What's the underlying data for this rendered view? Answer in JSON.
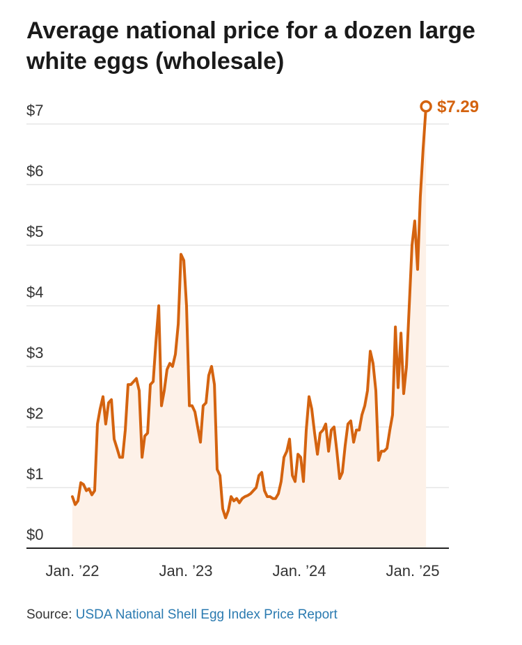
{
  "chart_data": {
    "type": "line",
    "title": "Average national price for a dozen large white eggs (wholesale)",
    "source": {
      "prefix": "Source:",
      "link": "USDA National Shell Egg Index Price Report"
    },
    "color": "#d4630f",
    "area_color": "#fdf1e8",
    "grid": true,
    "xlim": [
      2021.595,
      2025.319
    ],
    "ylim": [
      0,
      7
    ],
    "xticks": [
      {
        "value": 2022,
        "label": "Jan. ’22"
      },
      {
        "value": 2023,
        "label": "Jan. ’23"
      },
      {
        "value": 2024,
        "label": "Jan. ’24"
      },
      {
        "value": 2025,
        "label": "Jan. ’25"
      }
    ],
    "yticks": [
      {
        "value": 0,
        "label": "$0"
      },
      {
        "value": 1,
        "label": "$1"
      },
      {
        "value": 2,
        "label": "$2"
      },
      {
        "value": 3,
        "label": "$3"
      },
      {
        "value": 4,
        "label": "$4"
      },
      {
        "value": 5,
        "label": "$5"
      },
      {
        "value": 6,
        "label": "$6"
      },
      {
        "value": 7,
        "label": "$7"
      }
    ],
    "x": [
      2022.0,
      2022.025,
      2022.049,
      2022.074,
      2022.098,
      2022.123,
      2022.147,
      2022.172,
      2022.196,
      2022.221,
      2022.245,
      2022.27,
      2022.294,
      2022.319,
      2022.344,
      2022.368,
      2022.393,
      2022.417,
      2022.442,
      2022.466,
      2022.491,
      2022.515,
      2022.54,
      2022.564,
      2022.589,
      2022.614,
      2022.638,
      2022.663,
      2022.687,
      2022.712,
      2022.736,
      2022.761,
      2022.785,
      2022.81,
      2022.834,
      2022.859,
      2022.883,
      2022.908,
      2022.933,
      2022.957,
      2022.982,
      2023.006,
      2023.031,
      2023.055,
      2023.08,
      2023.104,
      2023.129,
      2023.153,
      2023.178,
      2023.202,
      2023.227,
      2023.252,
      2023.276,
      2023.301,
      2023.325,
      2023.35,
      2023.374,
      2023.399,
      2023.423,
      2023.448,
      2023.472,
      2023.497,
      2023.521,
      2023.546,
      2023.571,
      2023.595,
      2023.62,
      2023.644,
      2023.669,
      2023.693,
      2023.718,
      2023.742,
      2023.767,
      2023.791,
      2023.816,
      2023.84,
      2023.865,
      2023.89,
      2023.914,
      2023.939,
      2023.963,
      2023.988,
      2024.012,
      2024.037,
      2024.061,
      2024.086,
      2024.11,
      2024.135,
      2024.16,
      2024.184,
      2024.209,
      2024.233,
      2024.258,
      2024.282,
      2024.307,
      2024.331,
      2024.356,
      2024.38,
      2024.405,
      2024.429,
      2024.454,
      2024.479,
      2024.503,
      2024.528,
      2024.552,
      2024.577,
      2024.601,
      2024.626,
      2024.65,
      2024.675,
      2024.699,
      2024.724,
      2024.748,
      2024.773,
      2024.798,
      2024.822,
      2024.847,
      2024.871,
      2024.896,
      2024.92,
      2024.945,
      2024.969,
      2024.994,
      2025.018,
      2025.043,
      2025.067,
      2025.092,
      2025.117
    ],
    "values": [
      0.85,
      0.72,
      0.78,
      1.08,
      1.05,
      0.95,
      0.98,
      0.88,
      0.95,
      2.05,
      2.3,
      2.5,
      2.05,
      2.4,
      2.45,
      1.8,
      1.65,
      1.5,
      1.5,
      1.95,
      2.7,
      2.7,
      2.75,
      2.8,
      2.6,
      1.5,
      1.85,
      1.9,
      2.7,
      2.75,
      3.4,
      4.0,
      2.35,
      2.6,
      2.95,
      3.05,
      3.0,
      3.2,
      3.7,
      4.85,
      4.75,
      4.0,
      2.35,
      2.35,
      2.25,
      2.0,
      1.75,
      2.35,
      2.4,
      2.85,
      3.0,
      2.7,
      1.3,
      1.2,
      0.65,
      0.5,
      0.62,
      0.85,
      0.78,
      0.82,
      0.75,
      0.82,
      0.85,
      0.87,
      0.9,
      0.95,
      1.0,
      1.2,
      1.25,
      0.95,
      0.85,
      0.85,
      0.82,
      0.82,
      0.9,
      1.1,
      1.5,
      1.6,
      1.8,
      1.2,
      1.1,
      1.55,
      1.5,
      1.1,
      1.95,
      2.5,
      2.3,
      1.9,
      1.55,
      1.9,
      1.95,
      2.05,
      1.6,
      1.95,
      2.0,
      1.6,
      1.15,
      1.25,
      1.7,
      2.05,
      2.1,
      1.75,
      1.95,
      1.95,
      2.2,
      2.35,
      2.6,
      3.25,
      3.05,
      2.6,
      1.45,
      1.6,
      1.6,
      1.65,
      1.95,
      2.2,
      3.65,
      2.65,
      3.55,
      2.55,
      3.0,
      4.0,
      5.0,
      5.4,
      4.6,
      5.8,
      6.6,
      7.29
    ],
    "value_labels": [
      null,
      null,
      null,
      null,
      null,
      null,
      null,
      null,
      null,
      null,
      null,
      null,
      null,
      null,
      null,
      null,
      null,
      null,
      null,
      null,
      null,
      null,
      null,
      null,
      null,
      null,
      null,
      null,
      null,
      null,
      null,
      null,
      null,
      null,
      null,
      null,
      null,
      null,
      null,
      null,
      null,
      null,
      null,
      null,
      null,
      null,
      null,
      null,
      null,
      null,
      null,
      null,
      null,
      null,
      null,
      null,
      null,
      null,
      null,
      null,
      null,
      null,
      null,
      null,
      null,
      null,
      null,
      null,
      null,
      null,
      null,
      null,
      null,
      null,
      null,
      null,
      null,
      null,
      null,
      null,
      null,
      null,
      null,
      null,
      null,
      null,
      null,
      null,
      null,
      null,
      null,
      null,
      null,
      null,
      null,
      null,
      null,
      null,
      null,
      null,
      null,
      null,
      null,
      null,
      null,
      null,
      null,
      null,
      null,
      null,
      null,
      null,
      null,
      null,
      null,
      null,
      null,
      null,
      null,
      null,
      null,
      null,
      null,
      null,
      null,
      null,
      null,
      "$7.29"
    ]
  }
}
